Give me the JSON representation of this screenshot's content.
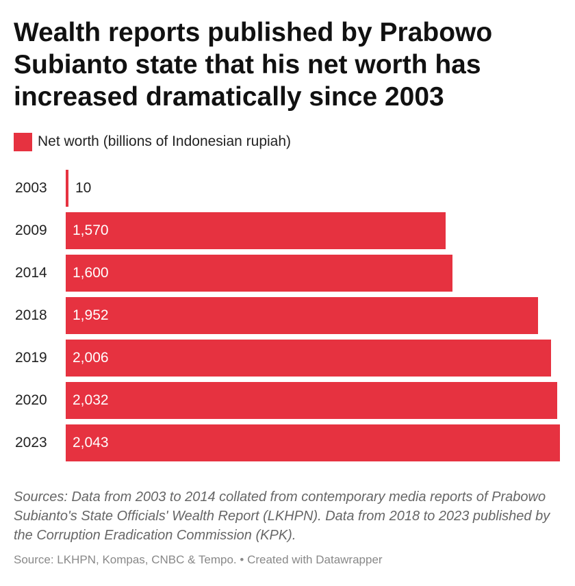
{
  "title": "Wealth reports published by Prabowo Subianto state that his net worth has increased dramatically since 2003",
  "legend": {
    "label": "Net worth (billions of Indonesian rupiah)",
    "color": "#e63240"
  },
  "notes": "Sources: Data from 2003 to 2014 collated from contemporary media reports of Prabowo Subianto's State Officials' Wealth Report (LKHPN). Data from 2018 to 2023 published by the Corruption Eradication Commission (KPK).",
  "footer": {
    "source": "Source: LKHPN, Kompas, CNBC & Tempo.",
    "credit": "Created with Datawrapper"
  },
  "chart_data": {
    "type": "bar",
    "orientation": "horizontal",
    "categories": [
      "2003",
      "2009",
      "2014",
      "2018",
      "2019",
      "2020",
      "2023"
    ],
    "series": [
      {
        "name": "Net worth (billions of Indonesian rupiah)",
        "values": [
          10,
          1570,
          1600,
          1952,
          2006,
          2032,
          2043
        ],
        "labels": [
          "10",
          "1,570",
          "1,600",
          "1,952",
          "2,006",
          "2,032",
          "2,043"
        ],
        "color": "#e63240"
      }
    ],
    "xlim": [
      0,
      2043
    ],
    "grid": false,
    "legend_position": "top-left"
  }
}
